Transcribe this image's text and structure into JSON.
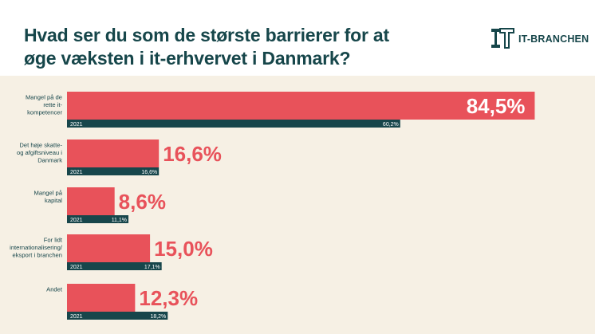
{
  "title": "Hvad ser du som de største barrierer for at øge væksten i it-erhvervet i Danmark?",
  "logo": {
    "text": "IT-BRANCHEN"
  },
  "colors": {
    "current": "#e8525a",
    "previous": "#17464b",
    "title": "#16464a",
    "background": "#f6f0e4"
  },
  "chart_data": {
    "type": "bar",
    "orientation": "horizontal",
    "categories": [
      [
        "Mangel på de",
        "rette it-",
        "kompetencer"
      ],
      [
        "Det høje skatte-",
        "og afgiftsniveau i",
        "Danmark"
      ],
      [
        "Mangel på",
        "kapital"
      ],
      [
        "For lidt",
        "internationalisering/",
        "eksport i branchen"
      ],
      [
        "Andet"
      ]
    ],
    "series": [
      {
        "values": [
          84.5,
          16.6,
          8.6,
          15.0,
          12.3
        ],
        "labels": [
          "84,5%",
          "16,6%",
          "8,6%",
          "15,0%",
          "12,3%"
        ]
      },
      {
        "name": "2021",
        "values": [
          60.2,
          16.6,
          11.1,
          17.1,
          18.2
        ],
        "labels": [
          "60,2%",
          "16,6%",
          "11,1%",
          "17,1%",
          "18,2%"
        ]
      }
    ],
    "xlim": [
      0,
      100
    ]
  }
}
